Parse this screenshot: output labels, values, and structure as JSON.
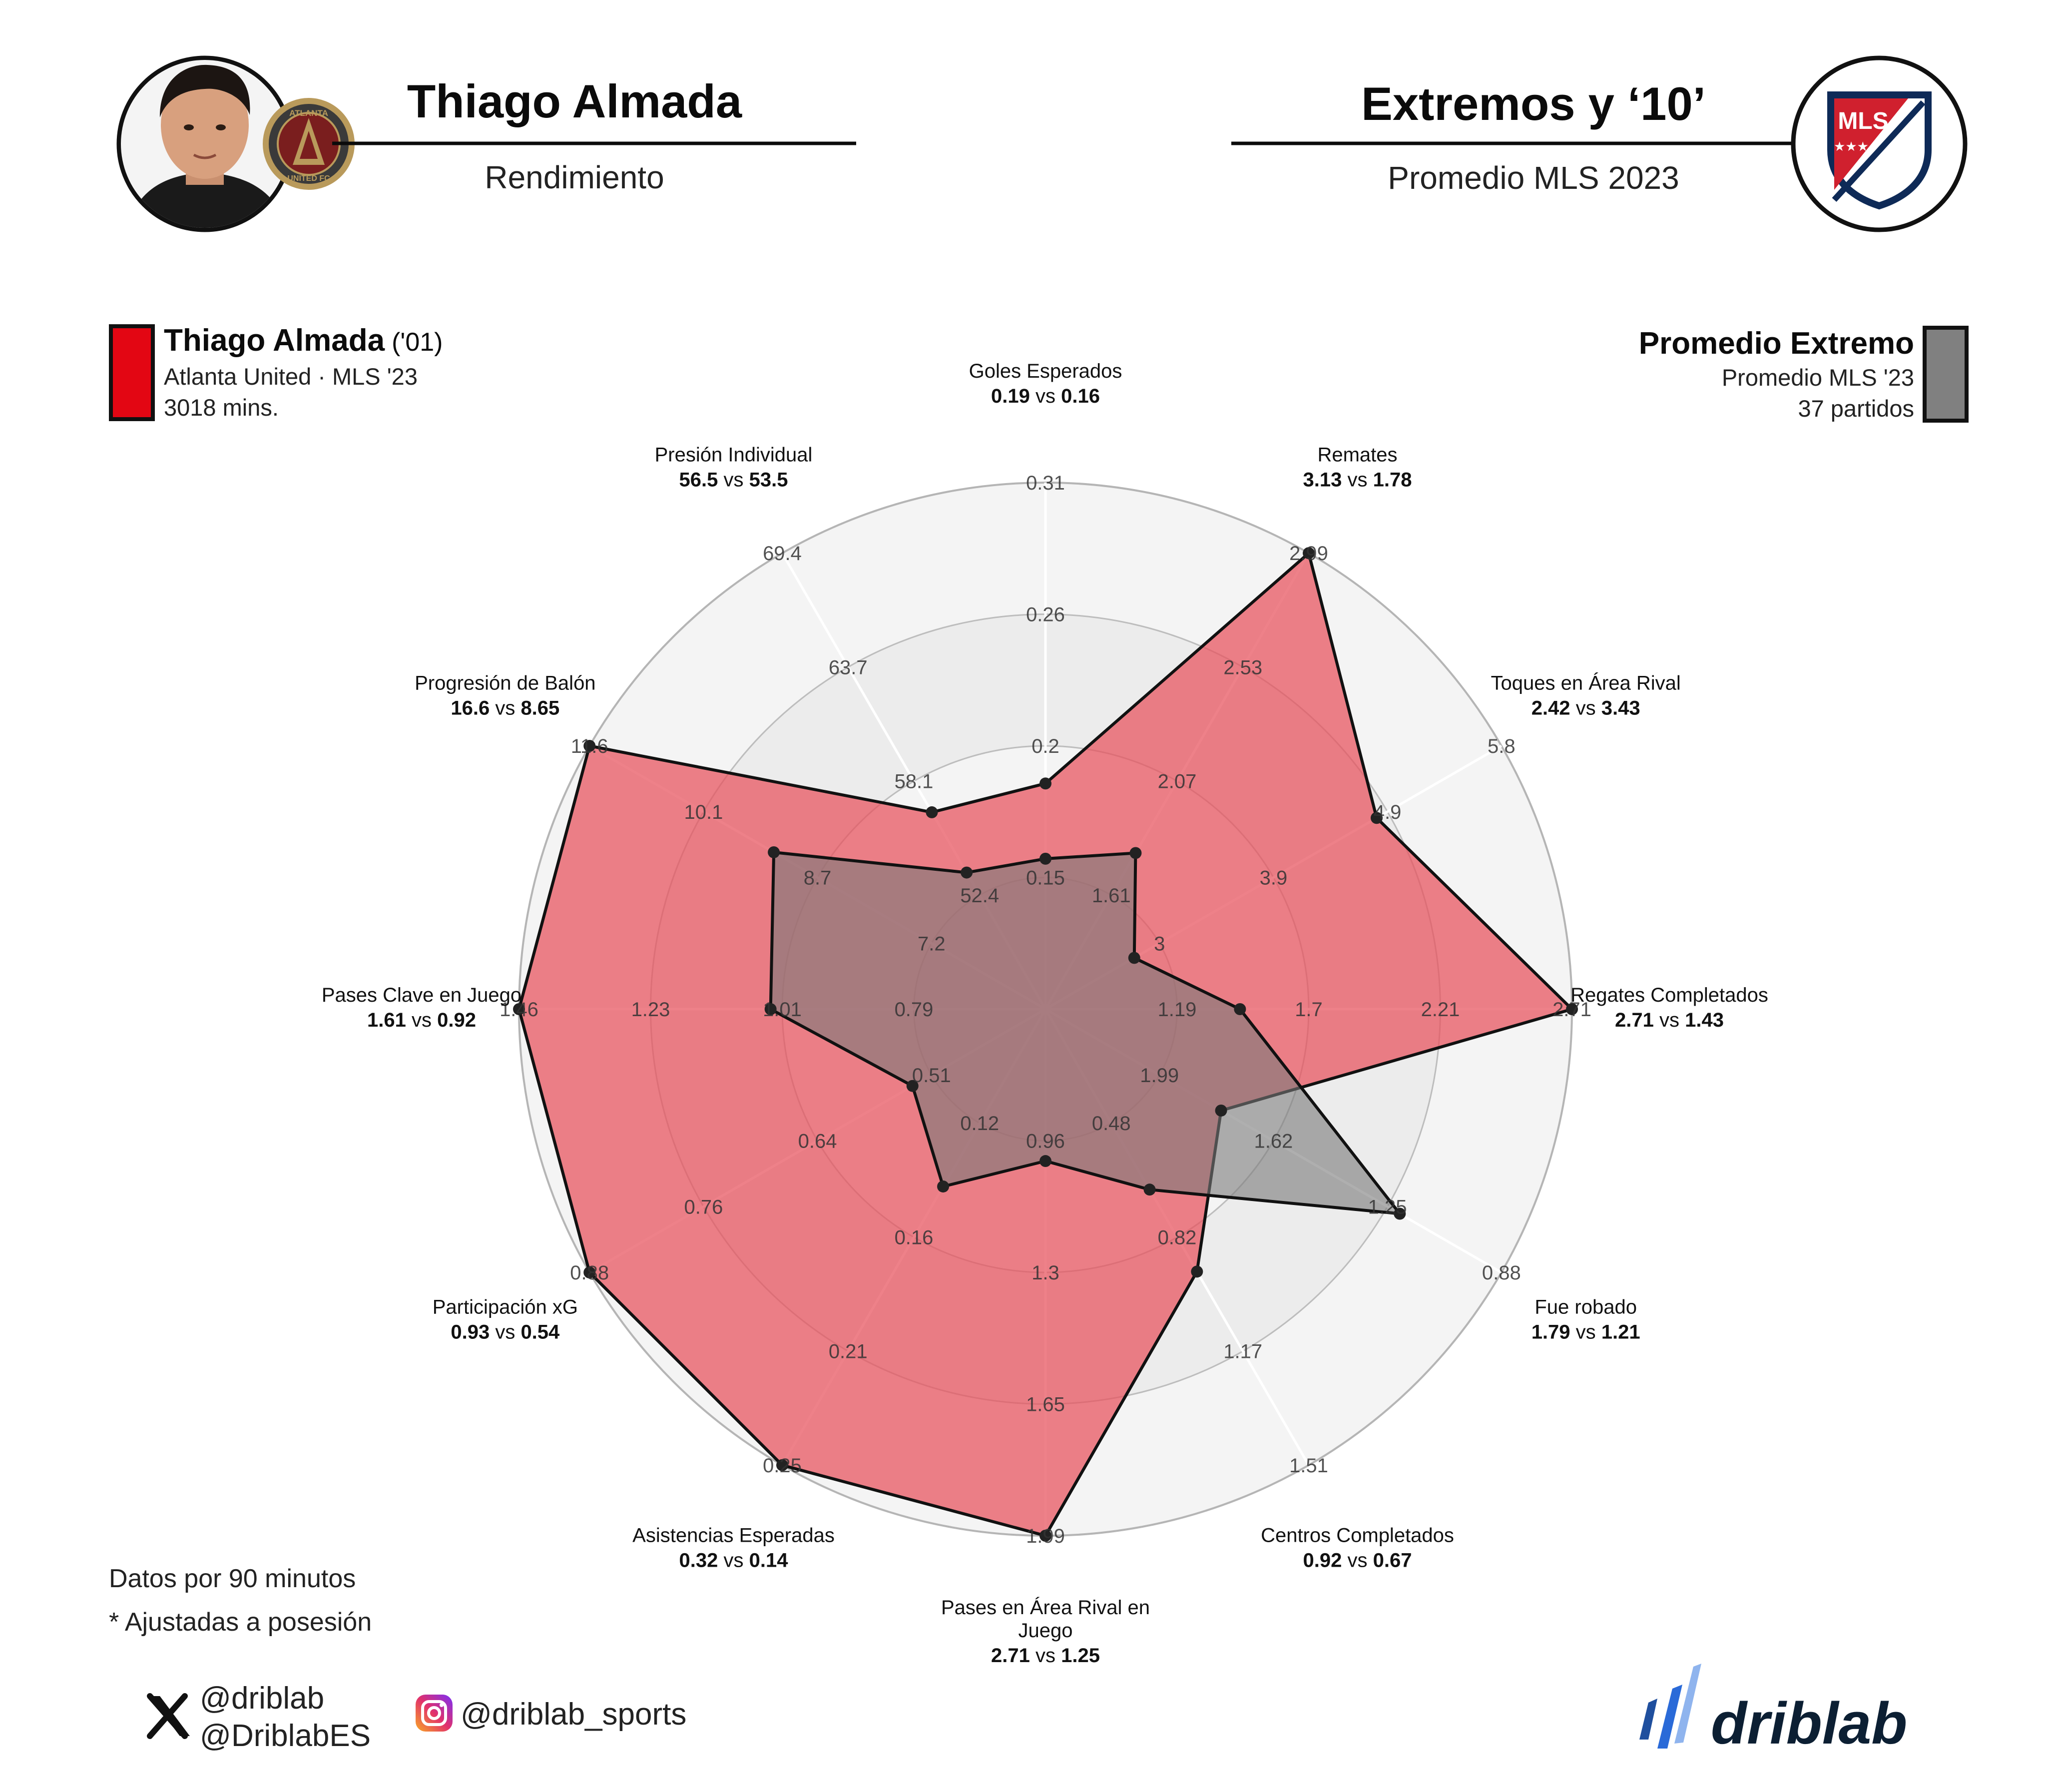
{
  "header": {
    "player_name": "Thiago Almada",
    "player_subtitle": "Rendimiento",
    "comparison_title": "Extremos y ‘10’",
    "comparison_subtitle": "Promedio MLS 2023",
    "club_badge_lines": [
      "ATLANTA",
      "UNITED FC"
    ],
    "league_logo_text": "MLS"
  },
  "legend": {
    "player": {
      "name": "Thiago Almada",
      "year": "('01)",
      "team_line": "Atlanta United · MLS '23",
      "minutes": "3018 mins.",
      "color": "#e30613"
    },
    "average": {
      "name": "Promedio Extremo",
      "line1": "Promedio MLS '23",
      "line2": "37 partidos",
      "color": "#808080"
    }
  },
  "notes": {
    "line1": "Datos por 90 minutos",
    "line2": "* Ajustadas a posesión"
  },
  "footer": {
    "x_handle1": "@driblab",
    "x_handle2": "@DriblabES",
    "instagram_handle": "@driblab_sports",
    "brand": "driblab"
  },
  "chart_data": {
    "type": "radar",
    "vs_word": "vs",
    "fill_colors": {
      "player": "#e8505b",
      "average": "#7a7a7a"
    },
    "categories": [
      "Goles Esperados",
      "Remates",
      "Toques en Área Rival",
      "Regates Completados",
      "Fue robado",
      "Centros Completados",
      "Pases en Área Rival en Juego",
      "Asistencias Esperadas",
      "Participación xG",
      "Pases Clave en Juego",
      "Progresión de Balón",
      "Presión Individual"
    ],
    "series": [
      {
        "name": "Thiago Almada",
        "values": [
          0.19,
          3.13,
          2.42,
          2.71,
          1.79,
          0.92,
          2.71,
          0.32,
          0.93,
          1.61,
          16.6,
          56.5
        ]
      },
      {
        "name": "Promedio Extremo",
        "values": [
          0.16,
          1.78,
          3.43,
          1.43,
          1.21,
          0.67,
          1.25,
          0.14,
          0.54,
          0.92,
          8.65,
          53.5
        ]
      }
    ],
    "value_labels": [
      {
        "a": "0.19",
        "b": "0.16"
      },
      {
        "a": "3.13",
        "b": "1.78"
      },
      {
        "a": "2.42",
        "b": "3.43"
      },
      {
        "a": "2.71",
        "b": "1.43"
      },
      {
        "a": "1.79",
        "b": "1.21"
      },
      {
        "a": "0.92",
        "b": "0.67"
      },
      {
        "a": "2.71",
        "b": "1.25"
      },
      {
        "a": "0.32",
        "b": "0.14"
      },
      {
        "a": "0.93",
        "b": "0.54"
      },
      {
        "a": "1.61",
        "b": "0.92"
      },
      {
        "a": "16.6",
        "b": "8.65"
      },
      {
        "a": "56.5",
        "b": "53.5"
      }
    ],
    "axis_ranges": [
      [
        0.1,
        0.31
      ],
      [
        1.15,
        2.99
      ],
      [
        3.8,
        1.9
      ],
      [
        0.68,
        2.71
      ],
      [
        2.36,
        0.88
      ],
      [
        0.12,
        1.51
      ],
      [
        0.95,
        1.99
      ],
      [
        0.07,
        0.25
      ],
      [
        0.4,
        0.88
      ],
      [
        0.33,
        1.46
      ],
      [
        4.3,
        11.6
      ],
      [
        46.7,
        69.4
      ]
    ],
    "ticks": [
      [
        "0.15",
        "0.2",
        "0.26",
        "0.31"
      ],
      [
        "1.61",
        "2.07",
        "2.53",
        "2.99"
      ],
      [
        "3",
        "3.9",
        "4.9",
        "5.8"
      ],
      [
        "1.19",
        "1.7",
        "2.21",
        "2.71"
      ],
      [
        "1.99",
        "1.62",
        "1.25",
        "0.88"
      ],
      [
        "0.48",
        "0.82",
        "1.17",
        "1.51"
      ],
      [
        "0.96",
        "1.3",
        "1.65",
        "1.99"
      ],
      [
        "0.12",
        "0.16",
        "0.21",
        "0.25"
      ],
      [
        "0.51",
        "0.64",
        "0.76",
        "0.88"
      ],
      [
        "0.79",
        "1.01",
        "1.23",
        "1.46"
      ],
      [
        "7.2",
        "8.7",
        "10.1",
        "11.6"
      ],
      [
        "52.4",
        "58.1",
        "63.7",
        "69.4"
      ]
    ],
    "rings": 4,
    "grid": true
  }
}
